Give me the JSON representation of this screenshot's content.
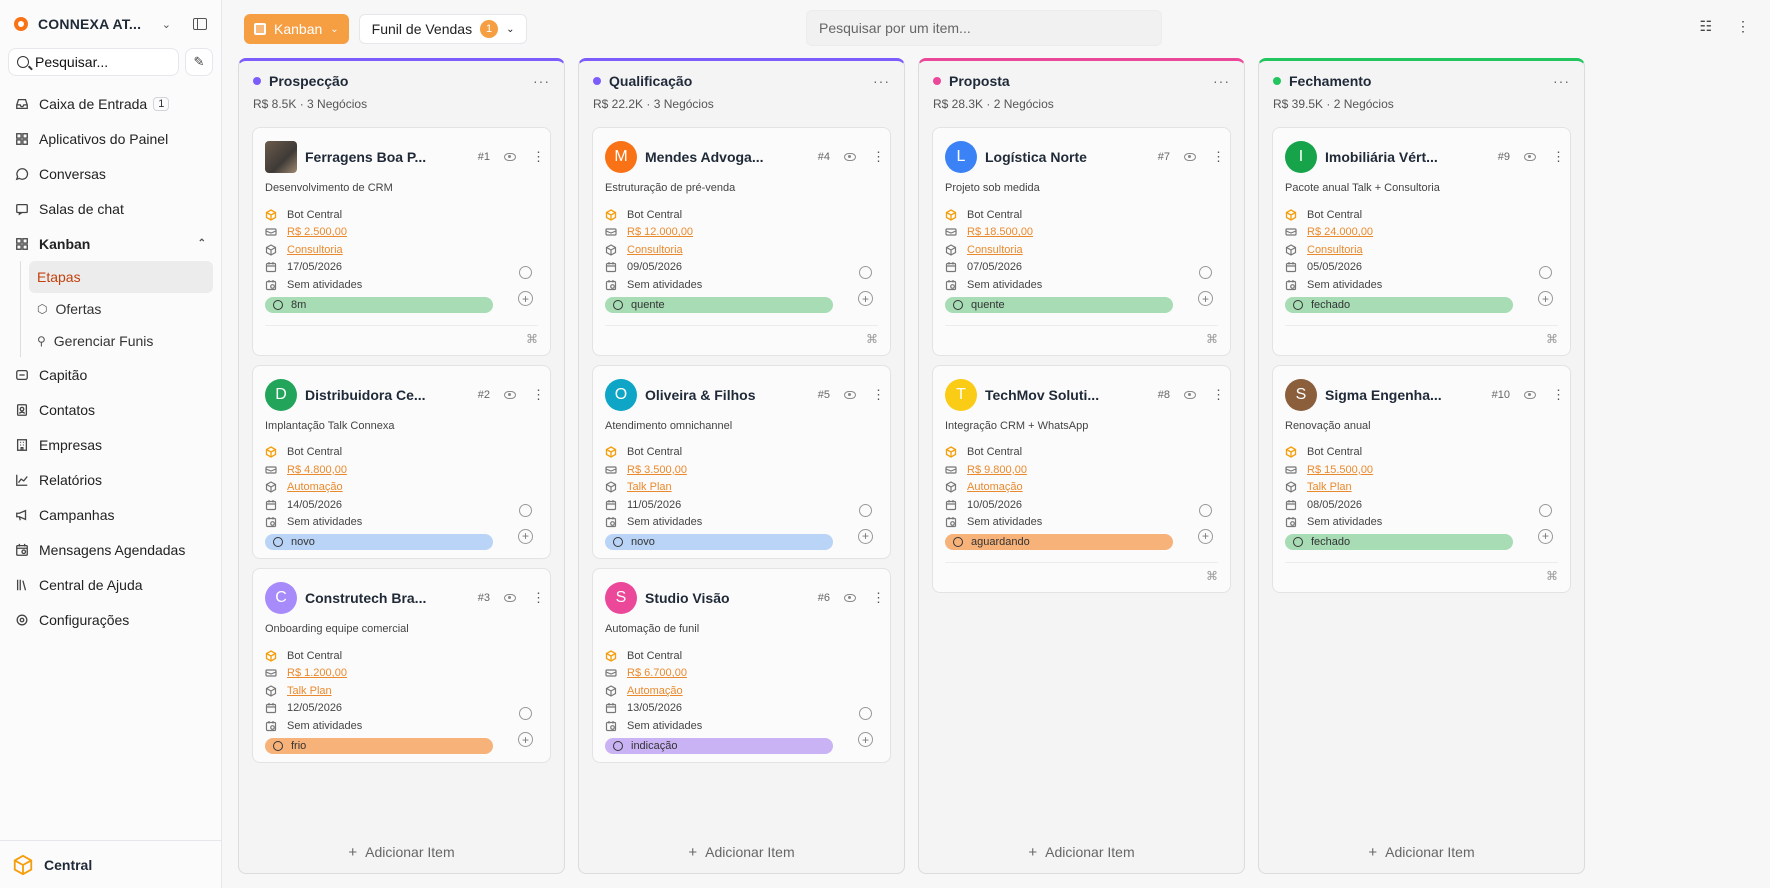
{
  "brand": {
    "name": "CONNEXA AT..."
  },
  "sidebar": {
    "search_placeholder": "Pesquisar...",
    "items": [
      {
        "label": "Caixa de Entrada",
        "badge": "1",
        "icon": "inbox-icon"
      },
      {
        "label": "Aplicativos do Painel",
        "icon": "grid-icon"
      },
      {
        "label": "Conversas",
        "icon": "chat-bubble-icon"
      },
      {
        "label": "Salas de chat",
        "icon": "chat-room-icon"
      },
      {
        "label": "Kanban",
        "icon": "kanban-icon"
      },
      {
        "label": "Capitão",
        "icon": "captain-icon"
      },
      {
        "label": "Contatos",
        "icon": "contacts-icon"
      },
      {
        "label": "Empresas",
        "icon": "building-icon"
      },
      {
        "label": "Relatórios",
        "icon": "chart-icon"
      },
      {
        "label": "Campanhas",
        "icon": "megaphone-icon"
      },
      {
        "label": "Mensagens Agendadas",
        "icon": "calendar-clock-icon"
      },
      {
        "label": "Central de Ajuda",
        "icon": "library-icon"
      },
      {
        "label": "Configurações",
        "icon": "gear-icon"
      }
    ],
    "kanban_sub": [
      "Etapas",
      "Ofertas",
      "Gerenciar Funis"
    ],
    "footer": "Central"
  },
  "topbar": {
    "kanban_label": "Kanban",
    "funil_label": "Funil de Vendas",
    "funil_count": "1",
    "search_placeholder": "Pesquisar por um item..."
  },
  "add_item_label": "Adicionar Item",
  "columns": [
    {
      "title": "Prospecção",
      "color": "#7c5cfa",
      "total": "R$ 8.5K",
      "count": "3 Negócios",
      "cards": [
        {
          "name": "Ferragens Boa P...",
          "num": "#1",
          "desc": "Desenvolvimento de CRM",
          "owner": "Bot Central",
          "value": "R$ 2.500,00",
          "offer": "Consultoria",
          "date": "17/05/2026",
          "activity": "Sem atividades",
          "tag": "8m",
          "tag_color": "#a7dcb5",
          "avatar": "",
          "avatar_color": "",
          "photo": true,
          "foot": true
        },
        {
          "name": "Distribuidora Ce...",
          "num": "#2",
          "desc": "Implantação Talk Connexa",
          "owner": "Bot Central",
          "value": "R$ 4.800,00",
          "offer": "Automação",
          "date": "14/05/2026",
          "activity": "Sem atividades",
          "tag": "novo",
          "tag_color": "#b9d4f7",
          "avatar": "D",
          "avatar_color": "#22a55b",
          "foot": false
        },
        {
          "name": "Construtech Bra...",
          "num": "#3",
          "desc": "Onboarding equipe comercial",
          "owner": "Bot Central",
          "value": "R$ 1.200,00",
          "offer": "Talk Plan",
          "date": "12/05/2026",
          "activity": "Sem atividades",
          "tag": "frio",
          "tag_color": "#f7b27a",
          "avatar": "C",
          "avatar_color": "#a78bfa",
          "foot": false
        }
      ]
    },
    {
      "title": "Qualificação",
      "color": "#7c5cfa",
      "total": "R$ 22.2K",
      "count": "3 Negócios",
      "cards": [
        {
          "name": "Mendes Advoga...",
          "num": "#4",
          "desc": "Estruturação de pré-venda",
          "owner": "Bot Central",
          "value": "R$ 12.000,00",
          "offer": "Consultoria",
          "date": "09/05/2026",
          "activity": "Sem atividades",
          "tag": "quente",
          "tag_color": "#a7dcb5",
          "avatar": "M",
          "avatar_color": "#f97316",
          "foot": true
        },
        {
          "name": "Oliveira & Filhos",
          "num": "#5",
          "desc": "Atendimento omnichannel",
          "owner": "Bot Central",
          "value": "R$ 3.500,00",
          "offer": "Talk Plan",
          "date": "11/05/2026",
          "activity": "Sem atividades",
          "tag": "novo",
          "tag_color": "#b9d4f7",
          "avatar": "O",
          "avatar_color": "#0ea5c6",
          "foot": false
        },
        {
          "name": "Studio Visão",
          "num": "#6",
          "desc": "Automação de funil",
          "owner": "Bot Central",
          "value": "R$ 6.700,00",
          "offer": "Automação",
          "date": "13/05/2026",
          "activity": "Sem atividades",
          "tag": "indicação",
          "tag_color": "#c9b3f5",
          "avatar": "S",
          "avatar_color": "#ec4899",
          "foot": false
        }
      ]
    },
    {
      "title": "Proposta",
      "color": "#ec4899",
      "total": "R$ 28.3K",
      "count": "2 Negócios",
      "cards": [
        {
          "name": "Logística Norte",
          "num": "#7",
          "desc": "Projeto sob medida",
          "owner": "Bot Central",
          "value": "R$ 18.500,00",
          "offer": "Consultoria",
          "date": "07/05/2026",
          "activity": "Sem atividades",
          "tag": "quente",
          "tag_color": "#a7dcb5",
          "avatar": "L",
          "avatar_color": "#3b82f6",
          "foot": true
        },
        {
          "name": "TechMov Soluti...",
          "num": "#8",
          "desc": "Integração CRM + WhatsApp",
          "owner": "Bot Central",
          "value": "R$ 9.800,00",
          "offer": "Automação",
          "date": "10/05/2026",
          "activity": "Sem atividades",
          "tag": "aguardando",
          "tag_color": "#f7b27a",
          "avatar": "T",
          "avatar_color": "#facc15",
          "foot": true
        }
      ]
    },
    {
      "title": "Fechamento",
      "color": "#22c55e",
      "total": "R$ 39.5K",
      "count": "2 Negócios",
      "cards": [
        {
          "name": "Imobiliária Vért...",
          "num": "#9",
          "desc": "Pacote anual Talk + Consultoria",
          "owner": "Bot Central",
          "value": "R$ 24.000,00",
          "offer": "Consultoria",
          "date": "05/05/2026",
          "activity": "Sem atividades",
          "tag": "fechado",
          "tag_color": "#a7dcb5",
          "avatar": "I",
          "avatar_color": "#16a34a",
          "foot": true
        },
        {
          "name": "Sigma Engenha...",
          "num": "#10",
          "desc": "Renovação anual",
          "owner": "Bot Central",
          "value": "R$ 15.500,00",
          "offer": "Talk Plan",
          "date": "08/05/2026",
          "activity": "Sem atividades",
          "tag": "fechado",
          "tag_color": "#a7dcb5",
          "avatar": "S",
          "avatar_color": "#8b5e3c",
          "foot": true
        }
      ]
    }
  ]
}
